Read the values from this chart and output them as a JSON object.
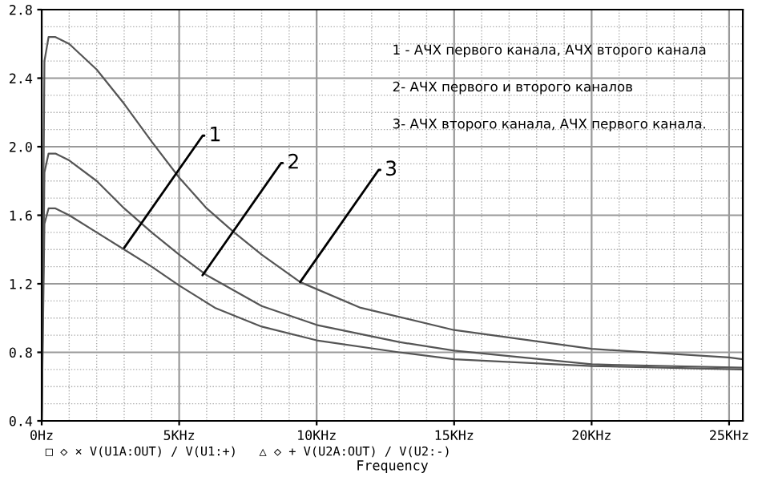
{
  "chart_data": {
    "type": "line",
    "xlabel": "Frequency",
    "xlim": [
      0,
      25.5
    ],
    "ylim": [
      0.4,
      2.8
    ],
    "xticks": [
      {
        "value": 0,
        "label": "0Hz"
      },
      {
        "value": 5,
        "label": "5KHz"
      },
      {
        "value": 10,
        "label": "10KHz"
      },
      {
        "value": 15,
        "label": "15KHz"
      },
      {
        "value": 20,
        "label": "20KHz"
      },
      {
        "value": 25,
        "label": "25KHz"
      }
    ],
    "yticks": [
      0.4,
      0.8,
      1.2,
      1.6,
      {
        "value": 2.0,
        "label": "2.0"
      },
      2.4,
      2.8
    ],
    "grid": true,
    "marker": "none",
    "line_style": "solid",
    "series": [
      {
        "color": "#555555",
        "x": [
          0,
          0.1,
          0.25,
          0.5,
          1,
          2,
          3,
          4,
          5,
          6,
          7,
          8,
          9.4,
          11.6,
          15,
          20,
          25,
          25.5
        ],
        "values": [
          0.4,
          2.5,
          2.64,
          2.64,
          2.6,
          2.45,
          2.25,
          2.03,
          1.82,
          1.64,
          1.5,
          1.37,
          1.21,
          1.06,
          0.93,
          0.82,
          0.77,
          0.76
        ]
      },
      {
        "color": "#555555",
        "x": [
          0,
          0.1,
          0.25,
          0.5,
          1,
          2,
          3,
          4,
          5,
          6,
          8,
          10,
          13,
          15,
          20,
          25.5
        ],
        "values": [
          0.4,
          1.85,
          1.96,
          1.96,
          1.92,
          1.8,
          1.64,
          1.5,
          1.37,
          1.25,
          1.07,
          0.96,
          0.86,
          0.81,
          0.73,
          0.71
        ]
      },
      {
        "color": "#555555",
        "x": [
          0,
          0.1,
          0.25,
          0.5,
          1,
          2,
          3,
          4,
          5,
          6.3,
          8,
          10,
          13,
          15,
          20,
          25.5
        ],
        "values": [
          0.4,
          1.55,
          1.64,
          1.64,
          1.6,
          1.5,
          1.4,
          1.3,
          1.19,
          1.06,
          0.95,
          0.87,
          0.8,
          0.76,
          0.72,
          0.7
        ]
      }
    ],
    "annotations": [
      {
        "text": "1",
        "x": 3,
        "y": 1.41
      },
      {
        "text": "2",
        "x": 5.85,
        "y": 1.25
      },
      {
        "text": "3",
        "x": 9.4,
        "y": 1.21
      },
      "1 - АЧХ первого канала, АЧХ второго канала",
      "2- АЧХ первого и второго каналов",
      "3- АЧХ второго канала, АЧХ первого канала.",
      "□ ◇ × V(U1A:OUT) / V(U1:+)   △ ◇ + V(U2A:OUT) / V(U2:-)"
    ]
  }
}
